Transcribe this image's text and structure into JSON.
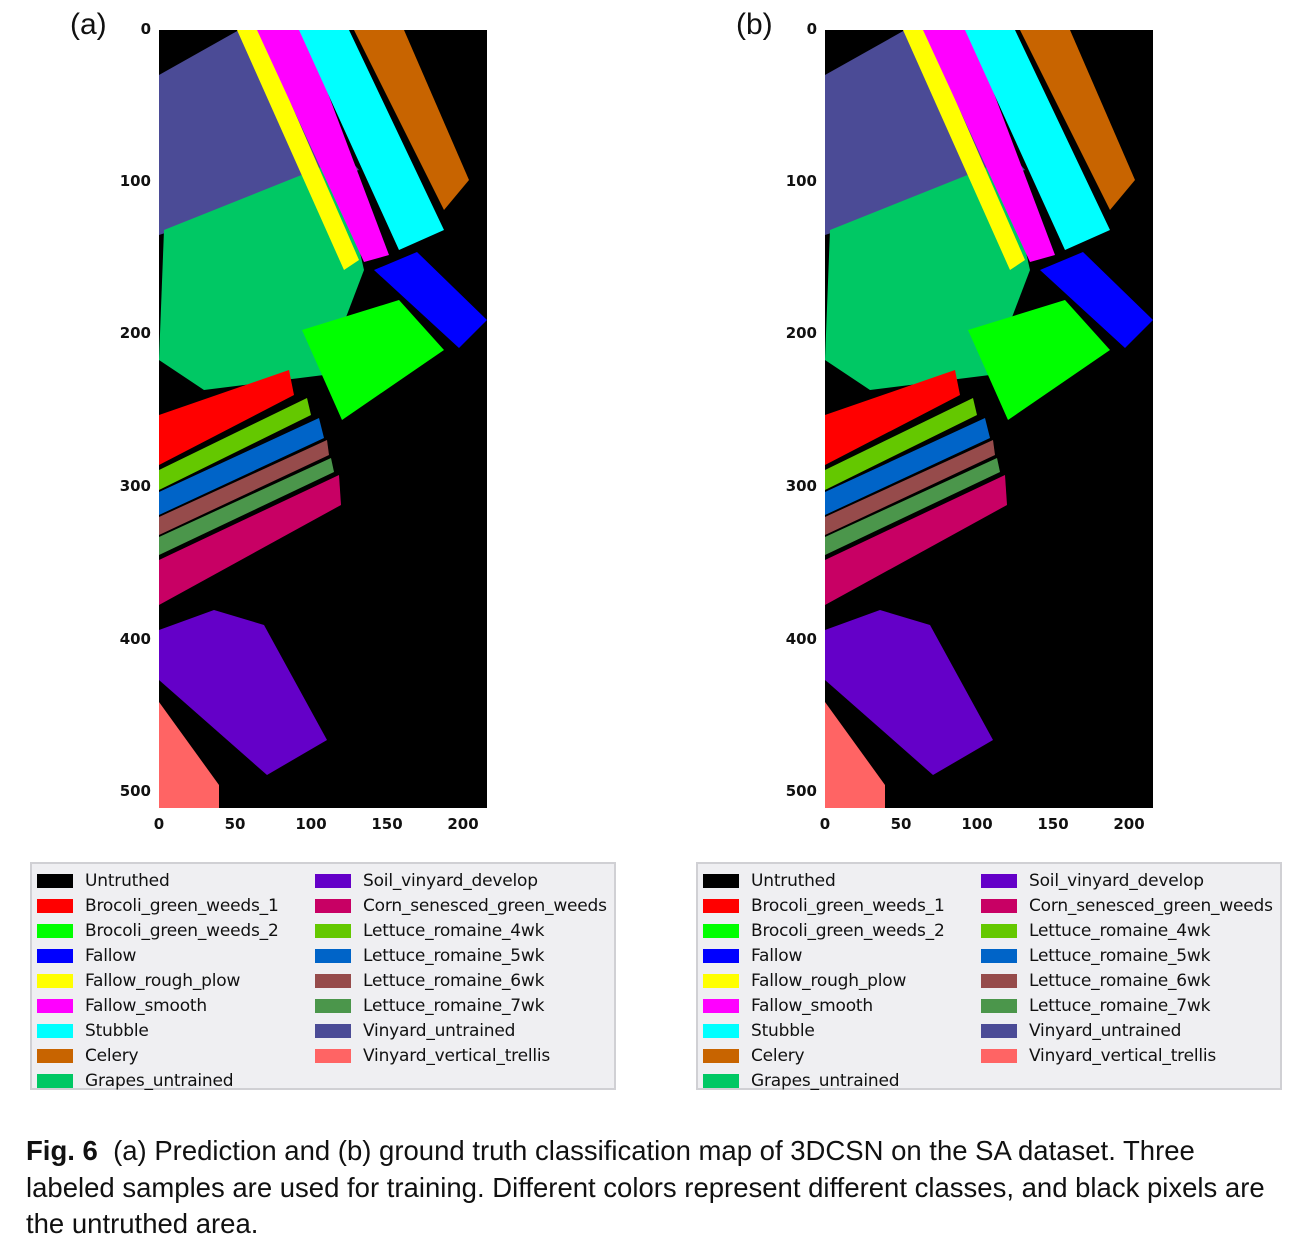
{
  "panels": [
    {
      "label": "(a)",
      "kind": "prediction"
    },
    {
      "label": "(b)",
      "kind": "ground-truth"
    }
  ],
  "axes": {
    "y_ticks": [
      "0",
      "100",
      "200",
      "300",
      "400",
      "500"
    ],
    "x_ticks": [
      "0",
      "50",
      "100",
      "150",
      "200"
    ]
  },
  "legend": [
    {
      "label": "Untruthed",
      "color": "#000000"
    },
    {
      "label": "Brocoli_green_weeds_1",
      "color": "#ff0000"
    },
    {
      "label": "Brocoli_green_weeds_2",
      "color": "#00ff00"
    },
    {
      "label": "Fallow",
      "color": "#0000ff"
    },
    {
      "label": "Fallow_rough_plow",
      "color": "#ffff00"
    },
    {
      "label": "Fallow_smooth",
      "color": "#ff00ff"
    },
    {
      "label": "Stubble",
      "color": "#00ffff"
    },
    {
      "label": "Celery",
      "color": "#c86400"
    },
    {
      "label": "Grapes_untrained",
      "color": "#00c864"
    },
    {
      "label": "Soil_vinyard_develop",
      "color": "#6400c8"
    },
    {
      "label": "Corn_senesced_green_weeds",
      "color": "#c80064"
    },
    {
      "label": "Lettuce_romaine_4wk",
      "color": "#64c800"
    },
    {
      "label": "Lettuce_romaine_5wk",
      "color": "#0064c8"
    },
    {
      "label": "Lettuce_romaine_6wk",
      "color": "#964b4b"
    },
    {
      "label": "Lettuce_romaine_7wk",
      "color": "#4b964b"
    },
    {
      "label": "Vinyard_untrained",
      "color": "#4b4b96"
    },
    {
      "label": "Vinyard_vertical_trellis",
      "color": "#ff6464"
    }
  ],
  "caption": {
    "fig_label": "Fig. 6",
    "text": "(a) Prediction and (b) ground truth classification map of 3DCSN on the SA dataset. Three labeled samples are used for training. Different colors represent different classes, and black pixels are the untruthed area."
  }
}
